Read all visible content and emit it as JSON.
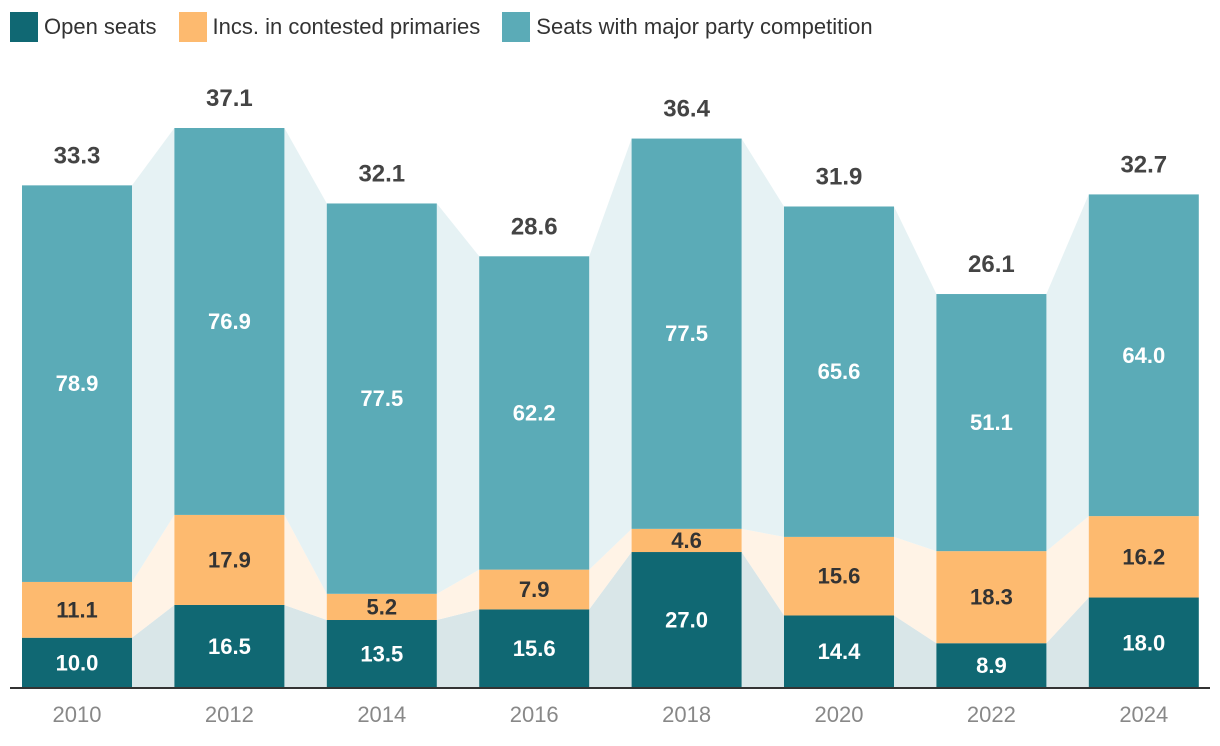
{
  "chart_data": {
    "type": "bar",
    "stacked": true,
    "title": "",
    "xlabel": "",
    "ylabel": "",
    "ylim": [
      0,
      37.1
    ],
    "grid": false,
    "legend_position": "top-left",
    "categories": [
      "2010",
      "2012",
      "2014",
      "2016",
      "2018",
      "2020",
      "2022",
      "2024"
    ],
    "totals": [
      33.3,
      37.1,
      32.1,
      28.6,
      36.4,
      31.9,
      26.1,
      32.7
    ],
    "series": [
      {
        "name": "Open seats",
        "color": "#106873",
        "labels": [
          10.0,
          16.5,
          13.5,
          15.6,
          27.0,
          14.4,
          8.9,
          18.0
        ]
      },
      {
        "name": "Incs. in contested primaries",
        "color": "#fdba6f",
        "labels": [
          11.1,
          17.9,
          5.2,
          7.9,
          4.6,
          15.6,
          18.3,
          16.2
        ]
      },
      {
        "name": "Seats with major party competition",
        "color": "#5babb7",
        "labels": [
          78.9,
          76.9,
          77.5,
          62.2,
          77.5,
          65.6,
          51.1,
          64.0
        ]
      }
    ],
    "series_note": "Segment heights are proportional to each series label's share of the bar total."
  }
}
